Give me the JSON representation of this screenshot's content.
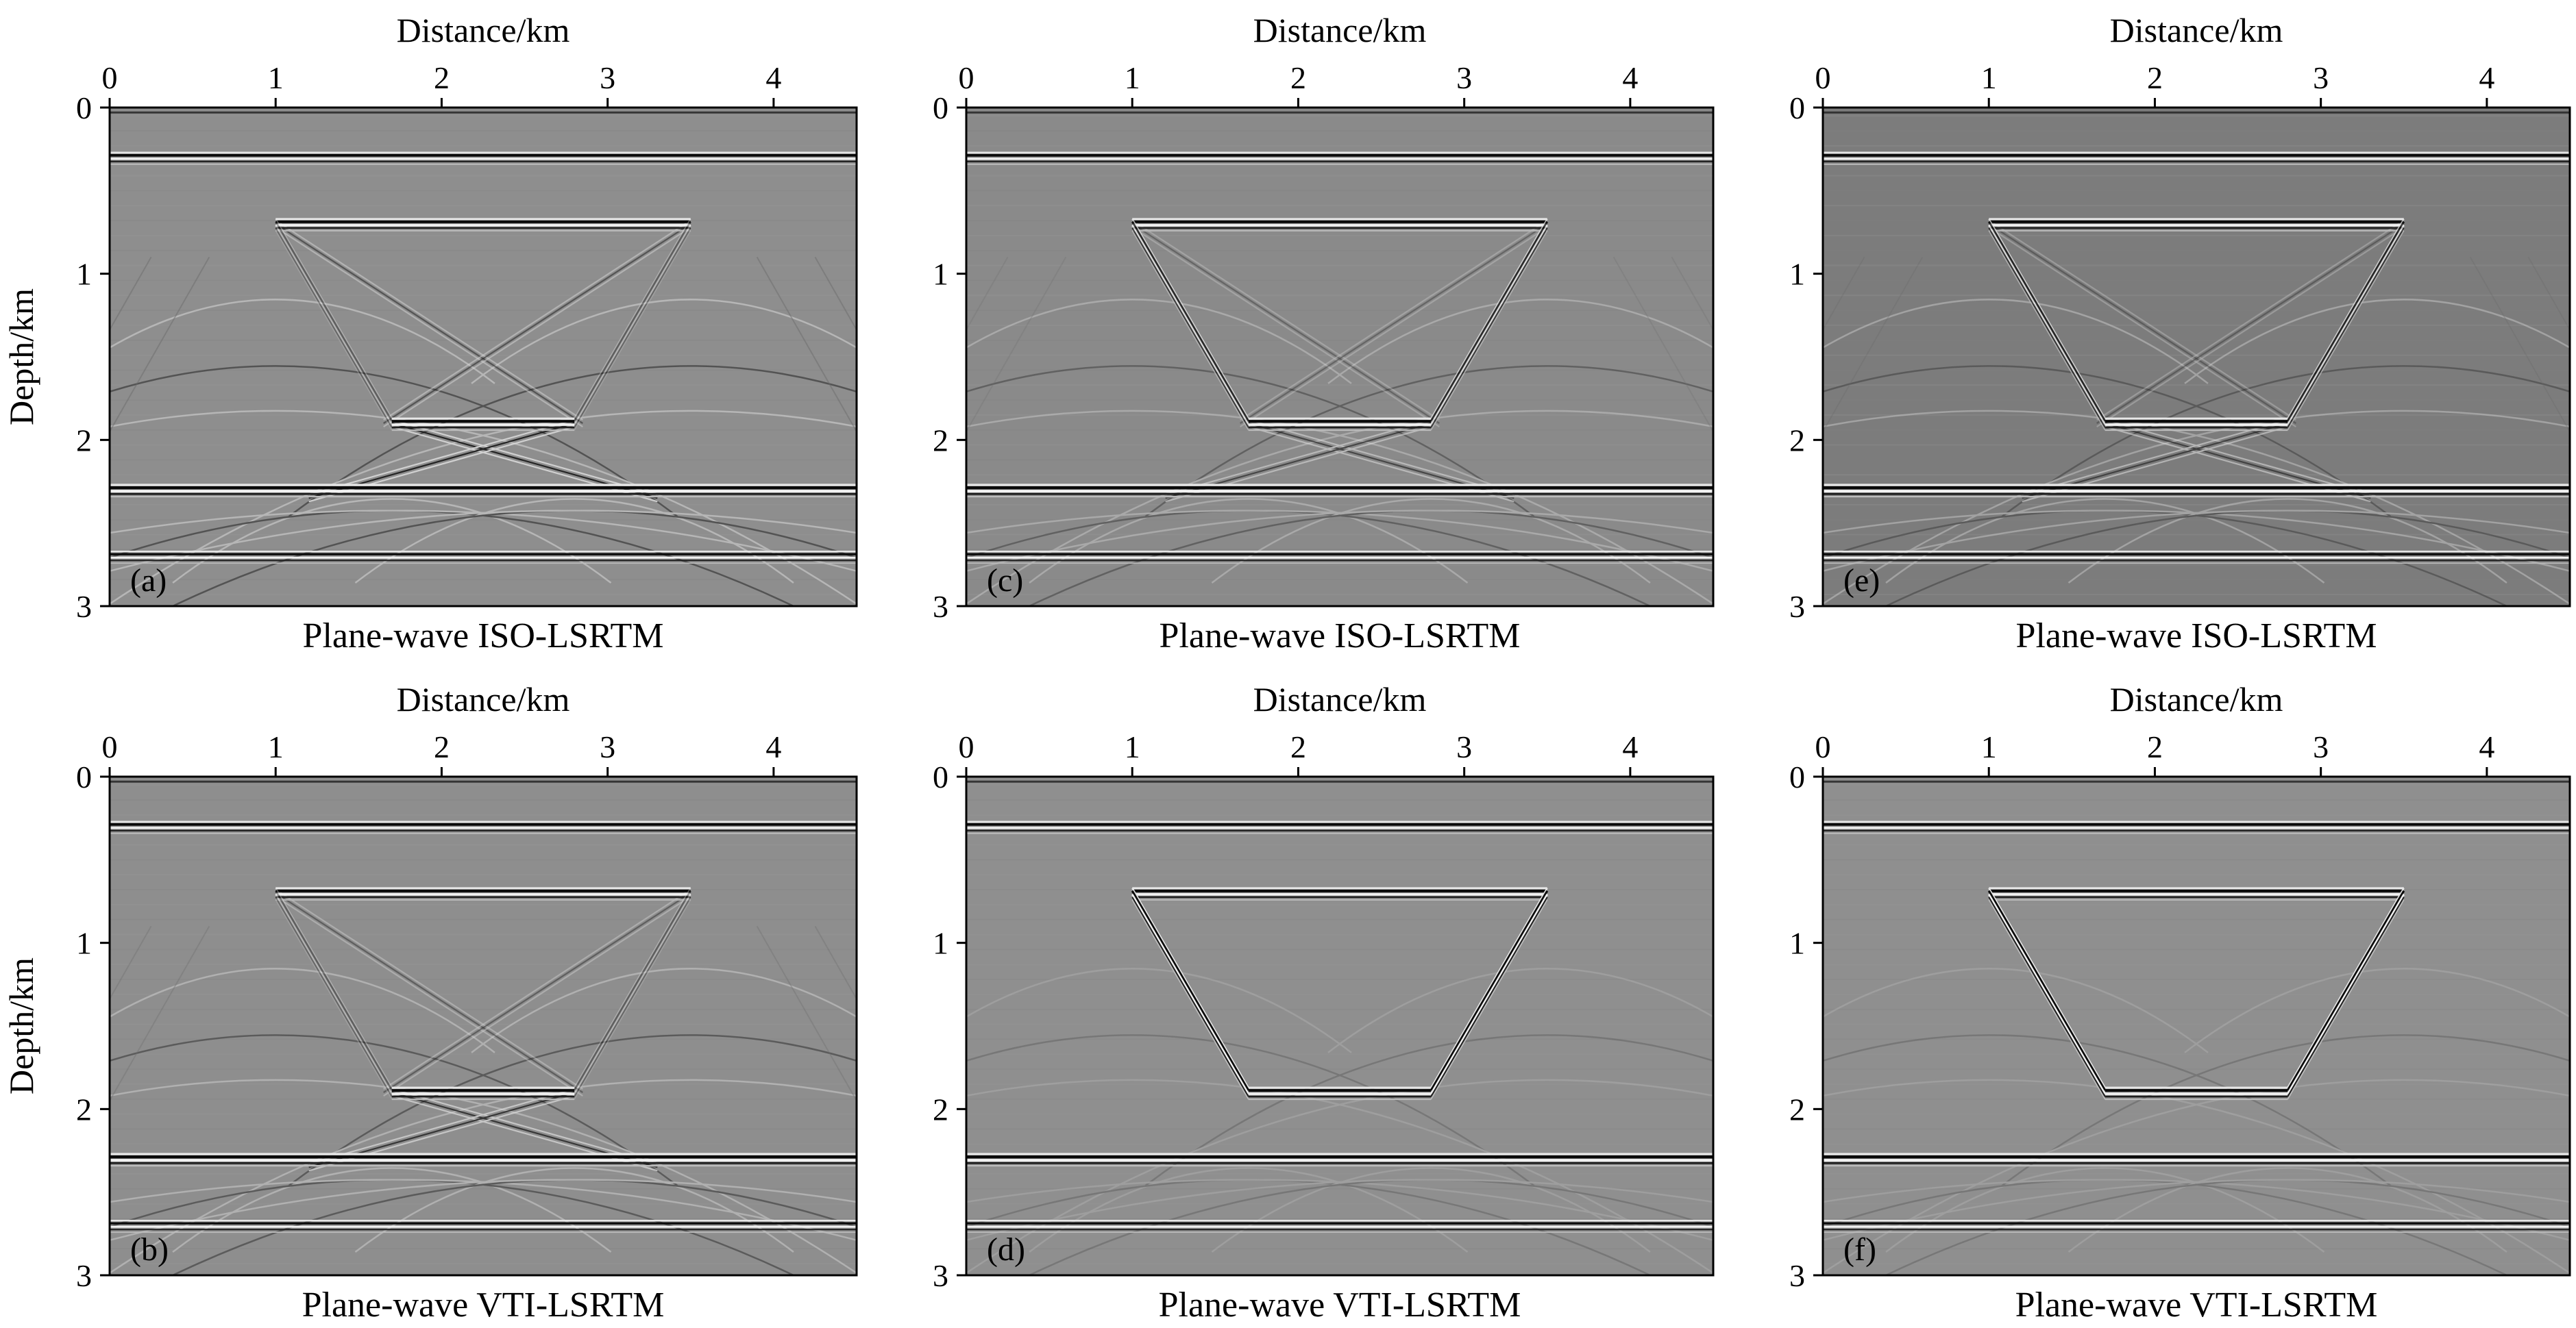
{
  "figure": {
    "x_axis_label": "Distance/km",
    "y_axis_label": "Depth/km",
    "x_ticks": [
      0,
      1,
      2,
      3,
      4
    ],
    "y_ticks": [
      0,
      1,
      2,
      3
    ],
    "xlim": [
      0,
      4.5
    ],
    "ylim": [
      3,
      0
    ],
    "colormap": "grayscale seismic image, gray background #8c8c8c"
  },
  "panels": [
    {
      "label": "(a)",
      "caption": "Plane-wave ISO-LSRTM",
      "y_label_visible": true,
      "artifact_level": 0.9,
      "background": "#8e8e8e"
    },
    {
      "label": "(c)",
      "caption": "Plane-wave ISO-LSRTM",
      "y_label_visible": false,
      "artifact_level": 0.6,
      "background": "#8a8a8a"
    },
    {
      "label": "(e)",
      "caption": "Plane-wave ISO-LSRTM",
      "y_label_visible": false,
      "artifact_level": 0.6,
      "background": "#7c7c7c"
    },
    {
      "label": "(b)",
      "caption": "Plane-wave VTI-LSRTM",
      "y_label_visible": true,
      "artifact_level": 0.75,
      "background": "#8e8e8e"
    },
    {
      "label": "(d)",
      "caption": "Plane-wave VTI-LSRTM",
      "y_label_visible": false,
      "artifact_level": 0.2,
      "background": "#8f8f8f"
    },
    {
      "label": "(f)",
      "caption": "Plane-wave VTI-LSRTM",
      "y_label_visible": false,
      "artifact_level": 0.2,
      "background": "#8f8f8f"
    }
  ],
  "model": {
    "flat_reflectors_depth_km": [
      0.3,
      2.3,
      2.7
    ],
    "trapezoid": {
      "top_depth_km": 0.7,
      "top_x_km": [
        1.0,
        3.5
      ],
      "bottom_depth_km": 1.9,
      "bottom_x_km": [
        1.7,
        2.8
      ]
    }
  }
}
